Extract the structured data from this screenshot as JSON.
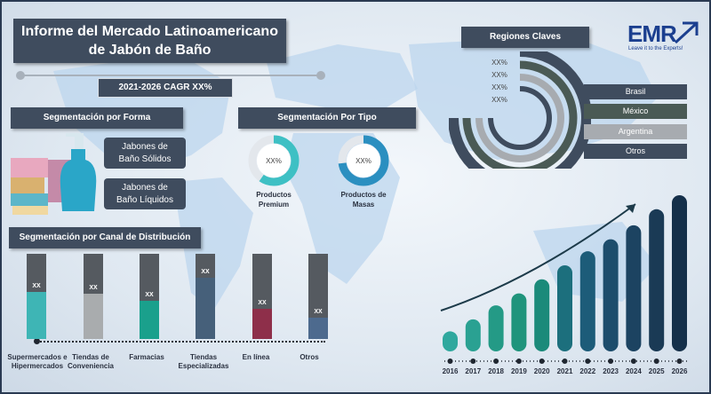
{
  "header": {
    "title_line1": "Informe del Mercado Latinoamericano",
    "title_line2": "de Jabón de Baño",
    "cagr": "2021-2026 CAGR XX%"
  },
  "logo": {
    "name": "EMR",
    "tagline": "Leave it to the Experts!"
  },
  "forma": {
    "title": "Segmentación por Forma",
    "items": [
      {
        "line1": "Jabones de",
        "line2": "Baño Sólidos"
      },
      {
        "line1": "Jabones de",
        "line2": "Baño Líquidos"
      }
    ]
  },
  "tipo": {
    "title": "Segmentación Por Tipo",
    "items": [
      {
        "value_label": "XX%",
        "line1": "Productos",
        "line2": "Premium",
        "color": "#3ec0c4"
      },
      {
        "value_label": "XX%",
        "line1": "Productos de",
        "line2": "Masas",
        "color": "#2b8fc0"
      }
    ]
  },
  "regiones": {
    "title": "Regiones Claves",
    "ring_labels": [
      "XX%",
      "XX%",
      "XX%",
      "XX%"
    ],
    "items": [
      {
        "label": "Brasil",
        "color": "#3f4c5e"
      },
      {
        "label": "México",
        "color": "#4a5a55"
      },
      {
        "label": "Argentina",
        "color": "#a7abb0"
      },
      {
        "label": "Otros",
        "color": "#3f4c5e"
      }
    ]
  },
  "canal": {
    "title": "Segmentación por Canal de Distribución",
    "items": [
      {
        "line1": "Supermercados e",
        "line2": "Hipermercados",
        "value_label": "XX",
        "share": 0.55,
        "color": "#3eb5b5"
      },
      {
        "line1": "Tiendas de",
        "line2": "Conveniencia",
        "value_label": "XX",
        "share": 0.53,
        "color": "#a9acae"
      },
      {
        "line1": "Farmacias",
        "line2": "",
        "value_label": "XX",
        "share": 0.45,
        "color": "#1aa08c"
      },
      {
        "line1": "Tiendas",
        "line2": "Especializadas",
        "value_label": "XX",
        "share": 0.72,
        "color": "#46607a"
      },
      {
        "line1": "En línea",
        "line2": "",
        "value_label": "XX",
        "share": 0.35,
        "color": "#8e2f4a"
      },
      {
        "line1": "Otros",
        "line2": "",
        "value_label": "XX",
        "share": 0.25,
        "color": "#4d6a8e"
      }
    ]
  },
  "chart_data": {
    "type": "bar",
    "categories": [
      "2016",
      "2017",
      "2018",
      "2019",
      "2020",
      "2021",
      "2022",
      "2023",
      "2024",
      "2025",
      "2026"
    ],
    "values": [
      1.0,
      1.6,
      2.3,
      2.9,
      3.6,
      4.3,
      5.0,
      5.6,
      6.3,
      7.1,
      7.8
    ],
    "colors": [
      "#2fa89e",
      "#2aa192",
      "#249a86",
      "#1f947c",
      "#1b8a7a",
      "#1c6f7d",
      "#1d5c79",
      "#1d4d6c",
      "#1c4361",
      "#1a3a55",
      "#15304a"
    ],
    "title": "",
    "xlabel": "",
    "ylabel": ""
  }
}
